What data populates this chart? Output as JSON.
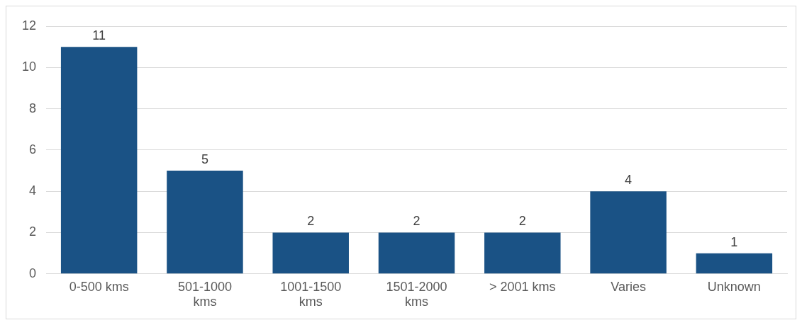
{
  "chart_data": {
    "type": "bar",
    "categories": [
      "0-500 kms",
      "501-1000 kms",
      "1001-1500 kms",
      "1501-2000 kms",
      "> 2001 kms",
      "Varies",
      "Unknown"
    ],
    "values": [
      11,
      5,
      2,
      2,
      2,
      4,
      1
    ],
    "color": "#1a5285",
    "ylim": [
      0,
      12
    ],
    "yticks": [
      0,
      2,
      4,
      6,
      8,
      10,
      12
    ],
    "grid": "y",
    "data_labels": true,
    "legend": false
  }
}
